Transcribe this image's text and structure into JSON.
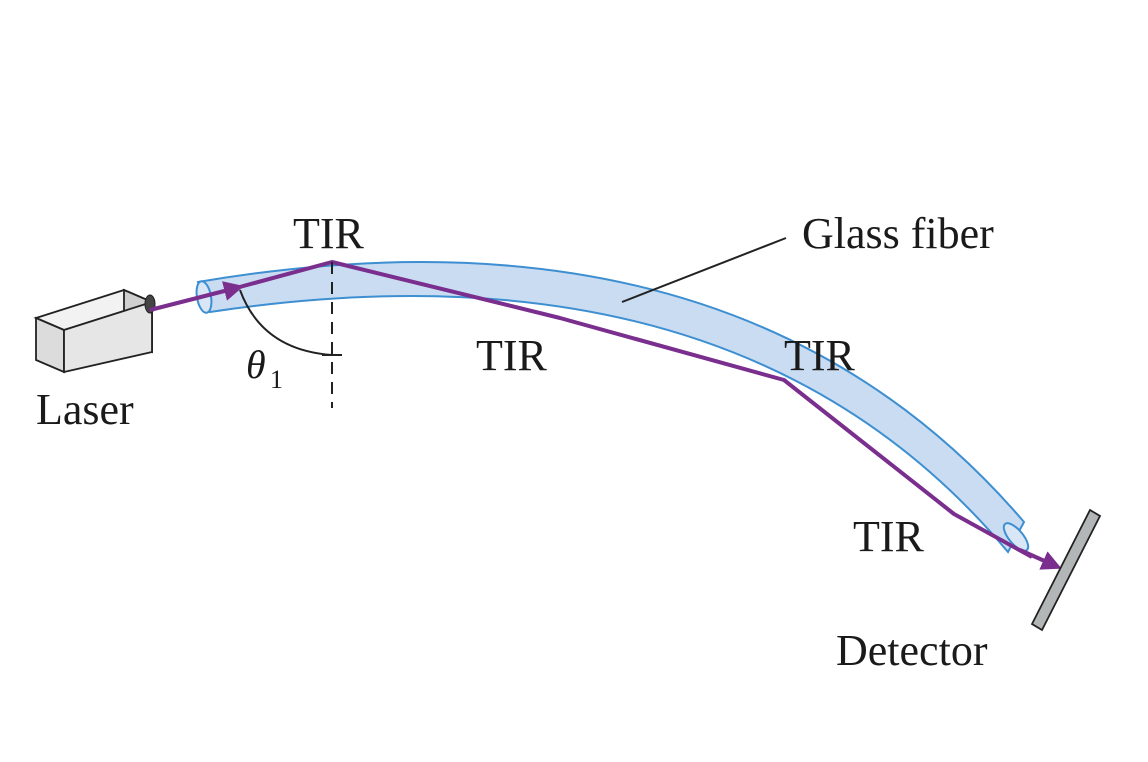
{
  "labels": {
    "tir_1": "TIR",
    "tir_2": "TIR",
    "tir_3": "TIR",
    "tir_4": "TIR",
    "glass_fiber": "Glass fiber",
    "laser": "Laser",
    "detector": "Detector",
    "angle_symbol": "θ",
    "angle_subscript": "1"
  },
  "colors": {
    "fiber_fill": "#c9dcf2",
    "fiber_edge": "#3d8fd1",
    "ray": "#7a2e8e",
    "laser_body": "#e6e6e6",
    "detector_fill": "#b3b6b6",
    "text": "#1a1a1a"
  }
}
